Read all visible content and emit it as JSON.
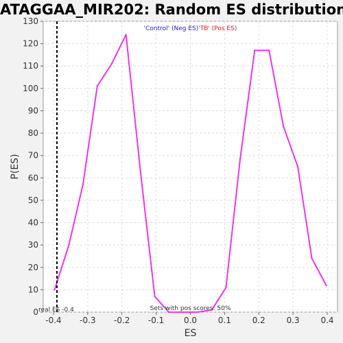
{
  "chart_data": {
    "type": "line",
    "title": "ATAGGAA_MIR202: Random ES distribution",
    "xlabel": "ES",
    "ylabel": "P(ES)",
    "xlim": [
      -0.43,
      0.43
    ],
    "ylim": [
      0,
      130
    ],
    "xticks": [
      "-0.4",
      "-0.3",
      "-0.2",
      "-0.1",
      "0.0",
      "0.1",
      "0.2",
      "0.3",
      "0.4"
    ],
    "yticks": [
      "0",
      "10",
      "20",
      "30",
      "40",
      "50",
      "60",
      "70",
      "80",
      "90",
      "100",
      "110",
      "120",
      "130"
    ],
    "grid": true,
    "legend": [
      {
        "text": "'Control' (Neg ES)",
        "color": "#2020d0"
      },
      {
        "text": "'TB' (Pos ES)",
        "color": "#d02020"
      }
    ],
    "series": [
      {
        "color": "#ee33ee",
        "x": [
          -0.397,
          -0.355,
          -0.314,
          -0.272,
          -0.23,
          -0.188,
          -0.146,
          -0.104,
          -0.063,
          -0.021,
          0.021,
          0.063,
          0.104,
          0.146,
          0.188,
          0.23,
          0.272,
          0.314,
          0.355,
          0.397
        ],
        "y": [
          10,
          30,
          57,
          101,
          111,
          124,
          63,
          7,
          0,
          0,
          0,
          1,
          11,
          69,
          117,
          117,
          83,
          65,
          24,
          12
        ]
      }
    ],
    "real_es": {
      "value": -0.39,
      "label": "real ES -0.4"
    },
    "annotation": "Sets with pos scores: 50%"
  }
}
